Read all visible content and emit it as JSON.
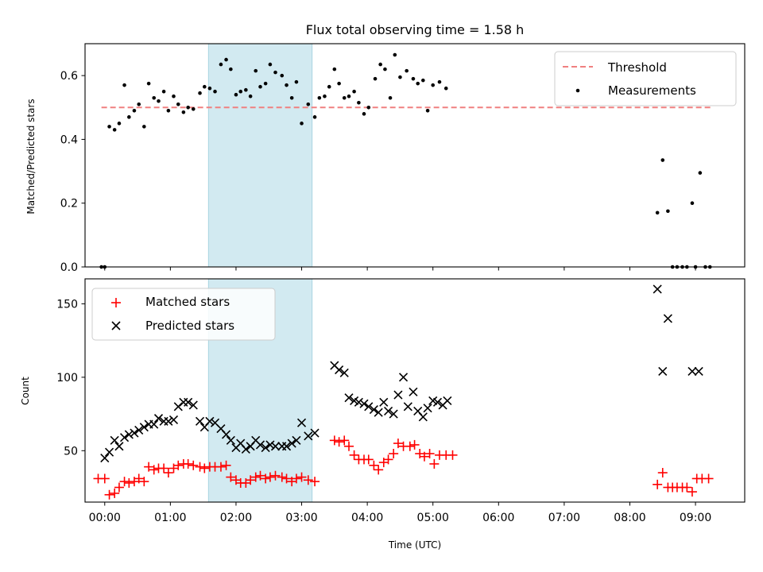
{
  "chart_data": [
    {
      "type": "scatter",
      "title": "Flux total observing time = 1.58 h",
      "ylabel": "Matched/Predicted stars",
      "xlabel": "",
      "xlim": [
        -0.3,
        9.75
      ],
      "ylim": [
        0,
        0.7
      ],
      "x_ticks": [
        0,
        1,
        2,
        3,
        4,
        5,
        6,
        7,
        8,
        9
      ],
      "y_ticks": [
        0.0,
        0.2,
        0.4,
        0.6
      ],
      "y_tick_labels": [
        "0.0",
        "0.2",
        "0.4",
        "0.6"
      ],
      "highlight_span": {
        "x_start": 1.58,
        "x_end": 3.16,
        "color": "#add8e6"
      },
      "threshold": {
        "name": "Threshold",
        "y": 0.5,
        "x_start": -0.05,
        "x_end": 9.25,
        "color": "#f08080"
      },
      "legend_position": "top-right",
      "series": [
        {
          "name": "Measurements",
          "color": "#000000",
          "marker": "dot",
          "points": [
            [
              -0.05,
              0.0
            ],
            [
              0.0,
              0.0
            ],
            [
              0.07,
              0.44
            ],
            [
              0.15,
              0.43
            ],
            [
              0.22,
              0.45
            ],
            [
              0.3,
              0.57
            ],
            [
              0.37,
              0.47
            ],
            [
              0.45,
              0.49
            ],
            [
              0.52,
              0.51
            ],
            [
              0.6,
              0.44
            ],
            [
              0.67,
              0.575
            ],
            [
              0.75,
              0.53
            ],
            [
              0.82,
              0.52
            ],
            [
              0.9,
              0.55
            ],
            [
              0.97,
              0.49
            ],
            [
              1.05,
              0.535
            ],
            [
              1.12,
              0.51
            ],
            [
              1.2,
              0.485
            ],
            [
              1.27,
              0.5
            ],
            [
              1.35,
              0.495
            ],
            [
              1.45,
              0.545
            ],
            [
              1.52,
              0.565
            ],
            [
              1.6,
              0.56
            ],
            [
              1.68,
              0.55
            ],
            [
              1.77,
              0.635
            ],
            [
              1.85,
              0.65
            ],
            [
              1.92,
              0.62
            ],
            [
              2.0,
              0.54
            ],
            [
              2.07,
              0.55
            ],
            [
              2.15,
              0.555
            ],
            [
              2.22,
              0.535
            ],
            [
              2.3,
              0.615
            ],
            [
              2.37,
              0.565
            ],
            [
              2.45,
              0.575
            ],
            [
              2.52,
              0.635
            ],
            [
              2.6,
              0.61
            ],
            [
              2.7,
              0.6
            ],
            [
              2.77,
              0.57
            ],
            [
              2.85,
              0.53
            ],
            [
              2.92,
              0.58
            ],
            [
              3.0,
              0.45
            ],
            [
              3.1,
              0.51
            ],
            [
              3.2,
              0.47
            ],
            [
              3.27,
              0.53
            ],
            [
              3.35,
              0.535
            ],
            [
              3.42,
              0.565
            ],
            [
              3.5,
              0.62
            ],
            [
              3.57,
              0.575
            ],
            [
              3.65,
              0.53
            ],
            [
              3.72,
              0.535
            ],
            [
              3.8,
              0.55
            ],
            [
              3.87,
              0.515
            ],
            [
              3.95,
              0.48
            ],
            [
              4.02,
              0.5
            ],
            [
              4.12,
              0.59
            ],
            [
              4.2,
              0.635
            ],
            [
              4.27,
              0.62
            ],
            [
              4.35,
              0.53
            ],
            [
              4.42,
              0.665
            ],
            [
              4.5,
              0.595
            ],
            [
              4.6,
              0.615
            ],
            [
              4.7,
              0.59
            ],
            [
              4.77,
              0.575
            ],
            [
              4.85,
              0.585
            ],
            [
              4.92,
              0.49
            ],
            [
              5.0,
              0.57
            ],
            [
              5.1,
              0.58
            ],
            [
              5.2,
              0.56
            ],
            [
              8.42,
              0.17
            ],
            [
              8.5,
              0.335
            ],
            [
              8.58,
              0.175
            ],
            [
              8.65,
              0.0
            ],
            [
              8.72,
              0.0
            ],
            [
              8.8,
              0.0
            ],
            [
              8.87,
              0.0
            ],
            [
              8.95,
              0.2
            ],
            [
              9.0,
              0.0
            ],
            [
              9.07,
              0.295
            ],
            [
              9.15,
              0.0
            ],
            [
              9.22,
              0.0
            ]
          ]
        }
      ]
    },
    {
      "type": "scatter",
      "title": "",
      "ylabel": "Count",
      "xlabel": "Time (UTC)",
      "xlim": [
        -0.3,
        9.75
      ],
      "ylim": [
        15,
        167
      ],
      "x_ticks": [
        0,
        1,
        2,
        3,
        4,
        5,
        6,
        7,
        8,
        9
      ],
      "x_tick_labels": [
        "00:00",
        "01:00",
        "02:00",
        "03:00",
        "04:00",
        "05:00",
        "06:00",
        "07:00",
        "08:00",
        "09:00"
      ],
      "y_ticks": [
        50,
        100,
        150
      ],
      "y_tick_labels": [
        "50",
        "100",
        "150"
      ],
      "highlight_span": {
        "x_start": 1.58,
        "x_end": 3.16,
        "color": "#add8e6"
      },
      "legend_position": "top-left",
      "series": [
        {
          "name": "Matched stars",
          "color": "#ff0000",
          "marker": "plus",
          "points": [
            [
              -0.1,
              31
            ],
            [
              0.0,
              31
            ],
            [
              0.07,
              20
            ],
            [
              0.15,
              21
            ],
            [
              0.22,
              25
            ],
            [
              0.3,
              29
            ],
            [
              0.37,
              28
            ],
            [
              0.45,
              29
            ],
            [
              0.52,
              31
            ],
            [
              0.6,
              29
            ],
            [
              0.67,
              39
            ],
            [
              0.75,
              37
            ],
            [
              0.82,
              38
            ],
            [
              0.9,
              38
            ],
            [
              0.97,
              35
            ],
            [
              1.05,
              38
            ],
            [
              1.12,
              40
            ],
            [
              1.2,
              41
            ],
            [
              1.27,
              41
            ],
            [
              1.35,
              40
            ],
            [
              1.45,
              39
            ],
            [
              1.52,
              38
            ],
            [
              1.6,
              39
            ],
            [
              1.68,
              39
            ],
            [
              1.77,
              39
            ],
            [
              1.85,
              40
            ],
            [
              1.92,
              32
            ],
            [
              2.0,
              30
            ],
            [
              2.07,
              28
            ],
            [
              2.15,
              28
            ],
            [
              2.22,
              30
            ],
            [
              2.3,
              32
            ],
            [
              2.37,
              33
            ],
            [
              2.45,
              31
            ],
            [
              2.52,
              32
            ],
            [
              2.6,
              33
            ],
            [
              2.7,
              32
            ],
            [
              2.77,
              31
            ],
            [
              2.85,
              29
            ],
            [
              2.92,
              31
            ],
            [
              3.0,
              32
            ],
            [
              3.1,
              30
            ],
            [
              3.2,
              29
            ],
            [
              3.5,
              57
            ],
            [
              3.57,
              56
            ],
            [
              3.65,
              57
            ],
            [
              3.72,
              53
            ],
            [
              3.8,
              47
            ],
            [
              3.87,
              44
            ],
            [
              3.95,
              44
            ],
            [
              4.02,
              44
            ],
            [
              4.1,
              40
            ],
            [
              4.17,
              37
            ],
            [
              4.25,
              42
            ],
            [
              4.32,
              44
            ],
            [
              4.4,
              48
            ],
            [
              4.47,
              55
            ],
            [
              4.55,
              53
            ],
            [
              4.65,
              53
            ],
            [
              4.72,
              54
            ],
            [
              4.8,
              48
            ],
            [
              4.87,
              46
            ],
            [
              4.95,
              48
            ],
            [
              5.02,
              41
            ],
            [
              5.1,
              47
            ],
            [
              5.2,
              47
            ],
            [
              5.3,
              47
            ],
            [
              8.42,
              27
            ],
            [
              8.5,
              35
            ],
            [
              8.58,
              25
            ],
            [
              8.65,
              25
            ],
            [
              8.72,
              25
            ],
            [
              8.8,
              25
            ],
            [
              8.87,
              25
            ],
            [
              8.95,
              22
            ],
            [
              9.02,
              31
            ],
            [
              9.1,
              31
            ],
            [
              9.2,
              31
            ]
          ]
        },
        {
          "name": "Predicted stars",
          "color": "#000000",
          "marker": "x",
          "points": [
            [
              0.0,
              45
            ],
            [
              0.07,
              49
            ],
            [
              0.15,
              57
            ],
            [
              0.22,
              53
            ],
            [
              0.3,
              59
            ],
            [
              0.37,
              61
            ],
            [
              0.45,
              62
            ],
            [
              0.52,
              64
            ],
            [
              0.6,
              66
            ],
            [
              0.67,
              68
            ],
            [
              0.75,
              68
            ],
            [
              0.82,
              72
            ],
            [
              0.9,
              70
            ],
            [
              0.97,
              70
            ],
            [
              1.05,
              71
            ],
            [
              1.12,
              80
            ],
            [
              1.2,
              83
            ],
            [
              1.27,
              83
            ],
            [
              1.35,
              81
            ],
            [
              1.45,
              70
            ],
            [
              1.52,
              66
            ],
            [
              1.6,
              70
            ],
            [
              1.68,
              69
            ],
            [
              1.77,
              65
            ],
            [
              1.85,
              61
            ],
            [
              1.92,
              57
            ],
            [
              2.0,
              52
            ],
            [
              2.07,
              55
            ],
            [
              2.15,
              51
            ],
            [
              2.22,
              53
            ],
            [
              2.3,
              57
            ],
            [
              2.37,
              54
            ],
            [
              2.45,
              52
            ],
            [
              2.52,
              54
            ],
            [
              2.6,
              53
            ],
            [
              2.7,
              53
            ],
            [
              2.77,
              53
            ],
            [
              2.85,
              55
            ],
            [
              2.92,
              57
            ],
            [
              3.0,
              69
            ],
            [
              3.1,
              60
            ],
            [
              3.2,
              62
            ],
            [
              3.5,
              108
            ],
            [
              3.57,
              105
            ],
            [
              3.65,
              103
            ],
            [
              3.72,
              86
            ],
            [
              3.8,
              84
            ],
            [
              3.87,
              83
            ],
            [
              3.95,
              82
            ],
            [
              4.02,
              80
            ],
            [
              4.1,
              78
            ],
            [
              4.17,
              76
            ],
            [
              4.25,
              83
            ],
            [
              4.32,
              77
            ],
            [
              4.4,
              75
            ],
            [
              4.47,
              88
            ],
            [
              4.55,
              100
            ],
            [
              4.62,
              80
            ],
            [
              4.7,
              90
            ],
            [
              4.77,
              77
            ],
            [
              4.85,
              73
            ],
            [
              4.92,
              79
            ],
            [
              5.0,
              84
            ],
            [
              5.07,
              83
            ],
            [
              5.15,
              81
            ],
            [
              5.22,
              84
            ],
            [
              8.42,
              160
            ],
            [
              8.5,
              104
            ],
            [
              8.58,
              140
            ],
            [
              8.95,
              104
            ],
            [
              9.05,
              104
            ]
          ]
        }
      ]
    }
  ]
}
